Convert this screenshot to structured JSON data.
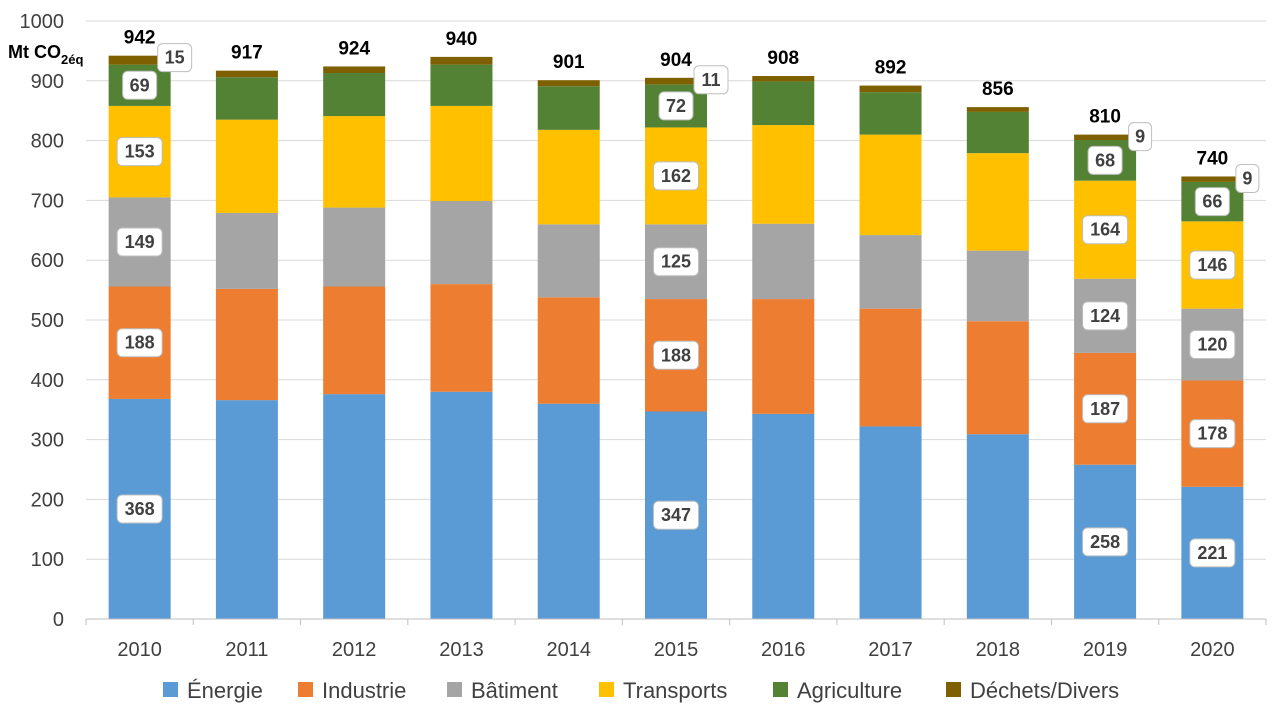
{
  "chart_data": {
    "type": "bar",
    "stacked": true,
    "title": "",
    "xlabel": "",
    "ylabel": "Mt CO",
    "ylabel_sub": "2éq",
    "ylim": [
      0,
      1000
    ],
    "yticks": [
      0,
      100,
      200,
      300,
      400,
      500,
      600,
      700,
      800,
      900,
      1000
    ],
    "grid": true,
    "legend_position": "bottom",
    "categories": [
      "2010",
      "2011",
      "2012",
      "2013",
      "2014",
      "2015",
      "2016",
      "2017",
      "2018",
      "2019",
      "2020"
    ],
    "series": [
      {
        "name": "Énergie",
        "color": "#5B9BD5",
        "values": [
          368,
          366,
          376,
          380,
          360,
          347,
          343,
          322,
          309,
          258,
          221
        ]
      },
      {
        "name": "Industrie",
        "color": "#ED7D31",
        "values": [
          188,
          186,
          180,
          180,
          178,
          188,
          192,
          197,
          189,
          187,
          178
        ]
      },
      {
        "name": "Bâtiment",
        "color": "#A5A5A5",
        "values": [
          149,
          127,
          132,
          139,
          122,
          125,
          126,
          123,
          118,
          124,
          120
        ]
      },
      {
        "name": "Transports",
        "color": "#FFC000",
        "values": [
          153,
          156,
          153,
          159,
          158,
          162,
          165,
          168,
          163,
          164,
          146
        ]
      },
      {
        "name": "Agriculture",
        "color": "#548235",
        "values": [
          69,
          71,
          72,
          69,
          73,
          72,
          73,
          71,
          69,
          68,
          66
        ]
      },
      {
        "name": "Déchets/Divers",
        "color": "#7F6000",
        "values": [
          15,
          11,
          11,
          13,
          10,
          11,
          9,
          11,
          8,
          9,
          9
        ]
      }
    ],
    "totals": [
      942,
      917,
      924,
      940,
      901,
      904,
      908,
      892,
      856,
      810,
      740
    ],
    "data_labels": [
      {
        "year": "2010",
        "series": "Énergie",
        "text": "368"
      },
      {
        "year": "2010",
        "series": "Industrie",
        "text": "188"
      },
      {
        "year": "2010",
        "series": "Bâtiment",
        "text": "149"
      },
      {
        "year": "2010",
        "series": "Transports",
        "text": "153"
      },
      {
        "year": "2010",
        "series": "Agriculture",
        "text": "69"
      },
      {
        "year": "2010",
        "series": "Déchets/Divers",
        "text": "15"
      },
      {
        "year": "2015",
        "series": "Énergie",
        "text": "347"
      },
      {
        "year": "2015",
        "series": "Industrie",
        "text": "188"
      },
      {
        "year": "2015",
        "series": "Bâtiment",
        "text": "125"
      },
      {
        "year": "2015",
        "series": "Transports",
        "text": "162"
      },
      {
        "year": "2015",
        "series": "Agriculture",
        "text": "72"
      },
      {
        "year": "2015",
        "series": "Déchets/Divers",
        "text": "11"
      },
      {
        "year": "2019",
        "series": "Énergie",
        "text": "258"
      },
      {
        "year": "2019",
        "series": "Industrie",
        "text": "187"
      },
      {
        "year": "2019",
        "series": "Bâtiment",
        "text": "124"
      },
      {
        "year": "2019",
        "series": "Transports",
        "text": "164"
      },
      {
        "year": "2019",
        "series": "Agriculture",
        "text": "68"
      },
      {
        "year": "2019",
        "series": "Déchets/Divers",
        "text": "9"
      },
      {
        "year": "2020",
        "series": "Énergie",
        "text": "221"
      },
      {
        "year": "2020",
        "series": "Industrie",
        "text": "178"
      },
      {
        "year": "2020",
        "series": "Bâtiment",
        "text": "120"
      },
      {
        "year": "2020",
        "series": "Transports",
        "text": "146"
      },
      {
        "year": "2020",
        "series": "Agriculture",
        "text": "66"
      },
      {
        "year": "2020",
        "series": "Déchets/Divers",
        "text": "9"
      }
    ]
  }
}
